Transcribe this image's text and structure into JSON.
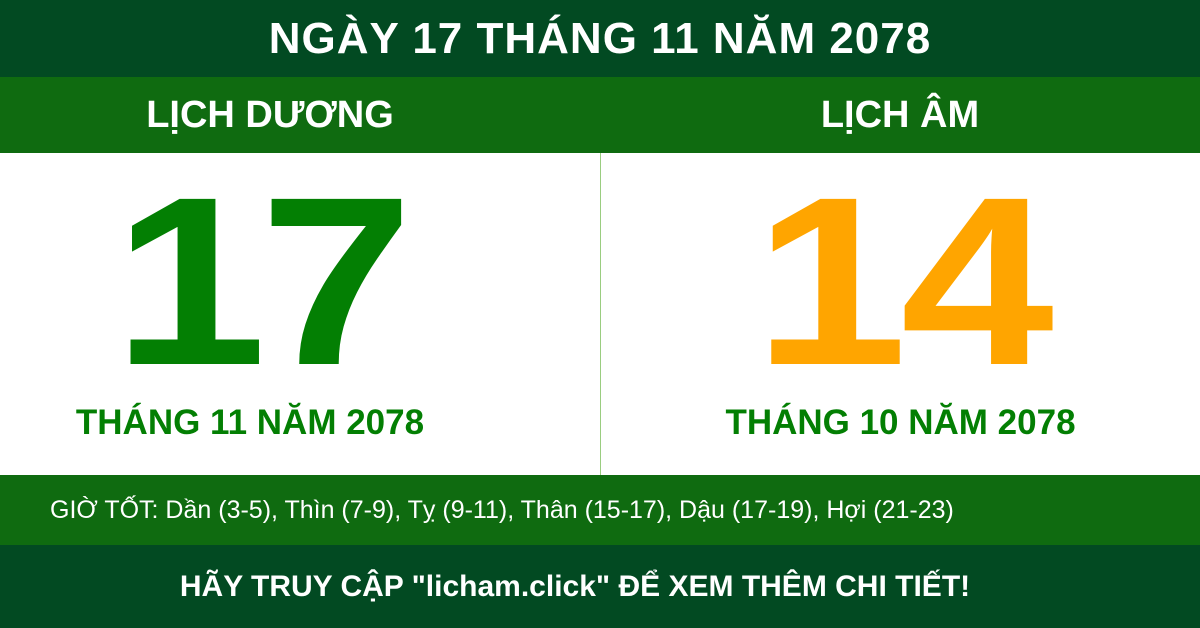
{
  "title": "NGÀY 17 THÁNG 11 NĂM 2078",
  "solar": {
    "label": "LỊCH DƯƠNG",
    "day": "17",
    "month_year": "THÁNG 11 NĂM 2078"
  },
  "lunar": {
    "label": "LỊCH ÂM",
    "day": "14",
    "month_year": "THÁNG 10 NĂM 2078"
  },
  "good_hours": "GIỜ TỐT: Dần (3-5), Thìn (7-9), Tỵ (9-11), Thân (15-17), Dậu (17-19), Hợi (21-23)",
  "footer": "HÃY TRUY CẬP \"licham.click\" ĐỂ XEM THÊM CHI TIẾT!",
  "colors": {
    "dark_green": "#024a22",
    "green": "#0f6b10",
    "digit_green": "#037f03",
    "orange": "#ffa500"
  }
}
